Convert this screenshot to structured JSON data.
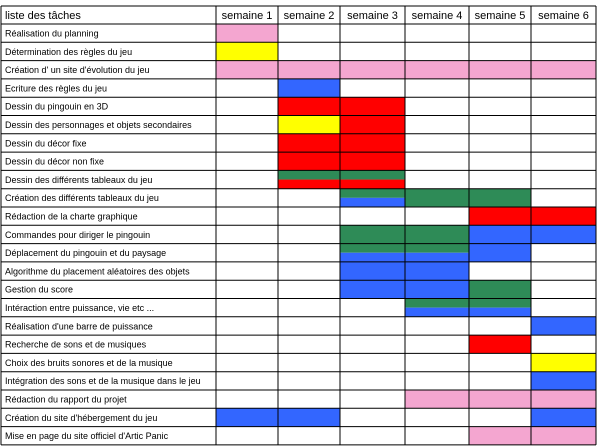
{
  "table": {
    "header_label": "liste des tâches",
    "weeks": [
      "semaine 1",
      "semaine 2",
      "semaine 3",
      "semaine 4",
      "semaine 5",
      "semaine 6"
    ],
    "colors": {
      "pink": "#f4a6d0",
      "yellow": "#ffff00",
      "red": "#ff0000",
      "green": "#2e8b57",
      "blue": "#3366ff",
      "grid": "#000000"
    },
    "tasks": [
      {
        "label": "Réalisation du planning",
        "cells": [
          [
            "pink"
          ],
          [],
          [],
          [],
          [],
          []
        ]
      },
      {
        "label": "Détermination des règles du jeu",
        "cells": [
          [
            "yellow"
          ],
          [],
          [],
          [],
          [],
          []
        ]
      },
      {
        "label": "Création d' un site d'évolution du jeu",
        "cells": [
          [
            "pink"
          ],
          [
            "pink"
          ],
          [
            "pink"
          ],
          [
            "pink"
          ],
          [
            "pink"
          ],
          [
            "pink"
          ]
        ]
      },
      {
        "label": "Ecriture des règles du jeu",
        "cells": [
          [],
          [
            "blue"
          ],
          [],
          [],
          [],
          []
        ]
      },
      {
        "label": "Dessin du pingouin en 3D",
        "cells": [
          [],
          [
            "red"
          ],
          [
            "red"
          ],
          [],
          [],
          []
        ]
      },
      {
        "label": "Dessin des personnages et objets secondaires",
        "cells": [
          [],
          [
            "yellow"
          ],
          [
            "red"
          ],
          [],
          [],
          []
        ]
      },
      {
        "label": "Dessin du décor fixe",
        "cells": [
          [],
          [
            "red"
          ],
          [
            "red"
          ],
          [],
          [],
          []
        ]
      },
      {
        "label": "Dessin du décor non fixe",
        "cells": [
          [],
          [
            "red"
          ],
          [
            "red"
          ],
          [],
          [],
          []
        ]
      },
      {
        "label": "Dessin des différents tableaux du jeu",
        "cells": [
          [],
          [
            "green",
            "red"
          ],
          [
            "green",
            "red"
          ],
          [],
          [],
          []
        ]
      },
      {
        "label": "Création des différents tableaux du jeu",
        "cells": [
          [],
          [],
          [
            "green",
            "blue"
          ],
          [
            "green"
          ],
          [
            "green"
          ],
          []
        ]
      },
      {
        "label": "Rédaction de la charte graphique",
        "cells": [
          [],
          [],
          [],
          [],
          [
            "red"
          ],
          [
            "red"
          ]
        ]
      },
      {
        "label": "Commandes pour diriger le pingouin",
        "cells": [
          [],
          [],
          [
            "green"
          ],
          [
            "green"
          ],
          [
            "blue"
          ],
          [
            "blue"
          ]
        ]
      },
      {
        "label": "Déplacement du pingouin et du paysage",
        "cells": [
          [],
          [],
          [
            "green",
            "blue"
          ],
          [
            "green",
            "blue"
          ],
          [
            "blue"
          ],
          []
        ]
      },
      {
        "label": "Algorithme du placement aléatoires des objets",
        "cells": [
          [],
          [],
          [
            "blue"
          ],
          [
            "blue"
          ],
          [],
          []
        ]
      },
      {
        "label": "Gestion du score",
        "cells": [
          [],
          [],
          [
            "blue"
          ],
          [
            "blue"
          ],
          [
            "green"
          ],
          []
        ]
      },
      {
        "label": "Intéraction entre puissance, vie etc ...",
        "cells": [
          [],
          [],
          [],
          [
            "green",
            "blue"
          ],
          [
            "green",
            "blue"
          ],
          []
        ]
      },
      {
        "label": "Réalisation d'une barre de puissance",
        "cells": [
          [],
          [],
          [],
          [],
          [],
          [
            "blue"
          ]
        ]
      },
      {
        "label": "Recherche de sons et de musiques",
        "cells": [
          [],
          [],
          [],
          [],
          [
            "red"
          ],
          []
        ]
      },
      {
        "label": "Choix des bruits sonores et de la musique",
        "cells": [
          [],
          [],
          [],
          [],
          [],
          [
            "yellow"
          ]
        ]
      },
      {
        "label": "Intégration des sons et de la musique dans le jeu",
        "cells": [
          [],
          [],
          [],
          [],
          [],
          [
            "blue"
          ]
        ]
      },
      {
        "label": "Rédaction du rapport du projet",
        "cells": [
          [],
          [],
          [],
          [
            "pink"
          ],
          [
            "pink"
          ],
          [
            "pink"
          ]
        ]
      },
      {
        "label": "Création du site d'hébergement du jeu",
        "cells": [
          [
            "blue"
          ],
          [
            "blue"
          ],
          [],
          [],
          [],
          [
            "blue"
          ]
        ]
      },
      {
        "label": "Mise en page du site officiel d'Artic Panic",
        "cells": [
          [],
          [],
          [],
          [],
          [
            "pink"
          ],
          [
            "pink"
          ]
        ]
      }
    ]
  }
}
